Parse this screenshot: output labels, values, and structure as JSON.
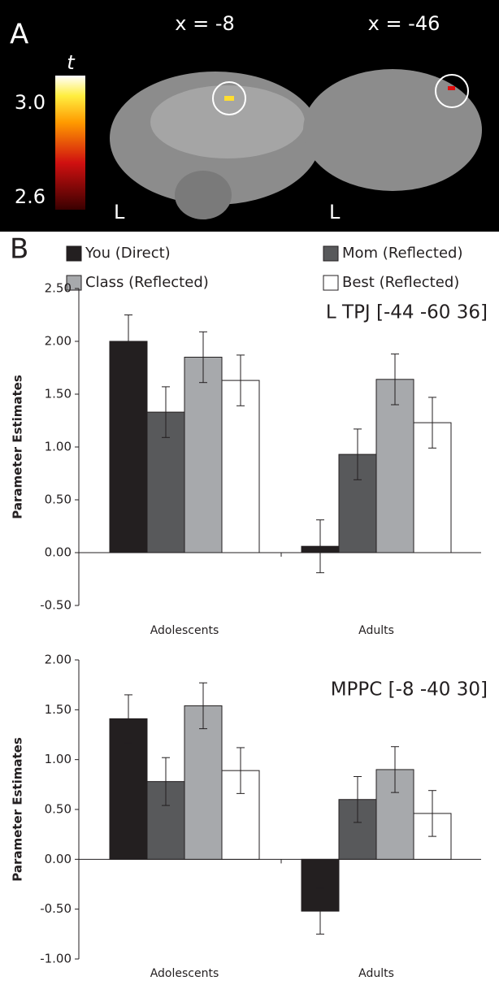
{
  "panel_a": {
    "label": "A",
    "slices": [
      "x = -8",
      "x = -46"
    ],
    "hemisphere_labels": [
      "L",
      "L"
    ],
    "colorbar": {
      "title": "t",
      "clim": [
        2.6,
        3.0
      ],
      "ticks": [
        {
          "value": 3.0,
          "label": "3.0"
        },
        {
          "value": 2.6,
          "label": "2.6"
        }
      ]
    }
  },
  "panel_b_label": "B",
  "chart_data": [
    {
      "type": "bar",
      "title": "L TPJ [-44 -60 36]",
      "y_label": "Parameter Estimates",
      "categories": [
        "Adolescents",
        "Adults"
      ],
      "series": [
        {
          "name": "You (Direct)",
          "color": "#231f20",
          "values": [
            2.0,
            0.06
          ],
          "errors": [
            0.25,
            0.25
          ]
        },
        {
          "name": "Mom (Reflected)",
          "color": "#58595b",
          "values": [
            1.33,
            0.93
          ],
          "errors": [
            0.24,
            0.24
          ]
        },
        {
          "name": "Class (Reflected)",
          "color": "#a7a9ac",
          "values": [
            1.85,
            1.64
          ],
          "errors": [
            0.24,
            0.24
          ]
        },
        {
          "name": "Best (Reflected)",
          "color": "#ffffff",
          "values": [
            1.63,
            1.23
          ],
          "errors": [
            0.24,
            0.24
          ]
        }
      ],
      "ylim": [
        -0.5,
        2.5
      ],
      "yticks": [
        {
          "value": 2.5,
          "label": "2.50"
        },
        {
          "value": 2.0,
          "label": "2.00"
        },
        {
          "value": 1.5,
          "label": "1.50"
        },
        {
          "value": 1.0,
          "label": "1.00"
        },
        {
          "value": 0.5,
          "label": "0.50"
        },
        {
          "value": 0.0,
          "label": "0.00"
        },
        {
          "value": -0.5,
          "label": "-0.50"
        }
      ]
    },
    {
      "type": "bar",
      "title": "MPPC [-8 -40 30]",
      "y_label": "Parameter Estimates",
      "categories": [
        "Adolescents",
        "Adults"
      ],
      "series": [
        {
          "values": [
            1.41,
            -0.52
          ],
          "errors": [
            0.24,
            0.23
          ]
        },
        {
          "values": [
            0.78,
            0.6
          ],
          "errors": [
            0.24,
            0.23
          ]
        },
        {
          "values": [
            1.54,
            0.9
          ],
          "errors": [
            0.23,
            0.23
          ]
        },
        {
          "values": [
            0.89,
            0.46
          ],
          "errors": [
            0.23,
            0.23
          ]
        }
      ],
      "ylim": [
        -1.0,
        2.0
      ],
      "yticks": [
        {
          "value": 2.0,
          "label": "2.00"
        },
        {
          "value": 1.5,
          "label": "1.50"
        },
        {
          "value": 1.0,
          "label": "1.00"
        },
        {
          "value": 0.5,
          "label": "0.50"
        },
        {
          "value": 0.0,
          "label": "0.00"
        },
        {
          "value": -0.5,
          "label": "-0.50"
        },
        {
          "value": -1.0,
          "label": "-1.00"
        }
      ]
    }
  ]
}
